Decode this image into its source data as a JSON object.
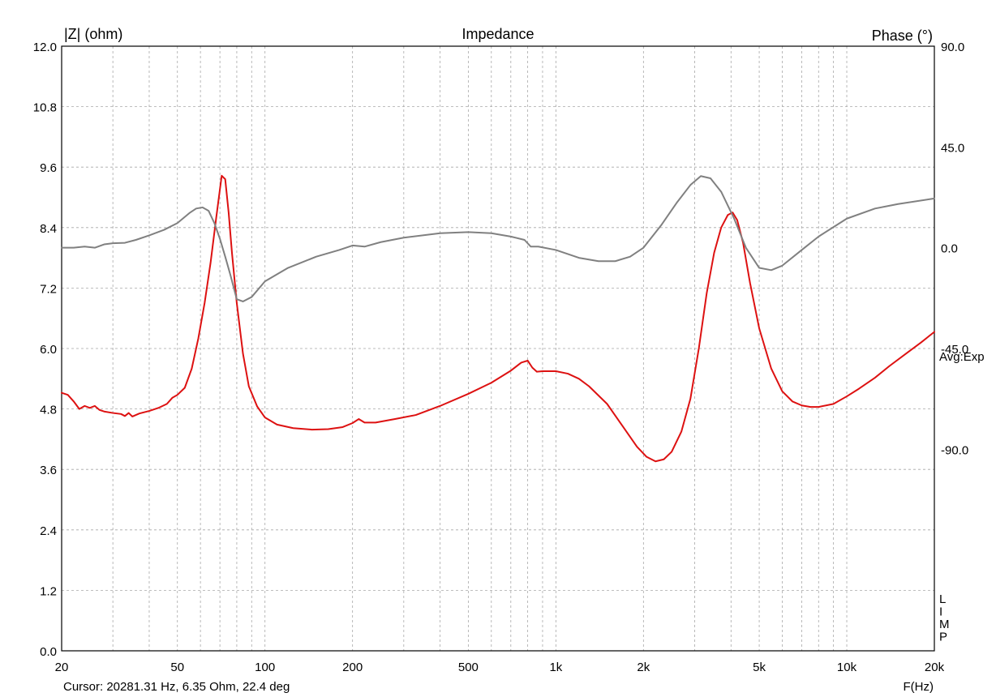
{
  "chart_data": {
    "type": "line",
    "title": "Impedance",
    "ylabel": "|Z| (ohm)",
    "y2label": "Phase (°)",
    "xlabel": "F(Hz)",
    "xscale": "log",
    "xlim": [
      20,
      20000
    ],
    "ylim": [
      0,
      12
    ],
    "y2lim": [
      -180,
      90
    ],
    "grid": true,
    "x_ticks": [
      {
        "value": 20,
        "label": "20"
      },
      {
        "value": 50,
        "label": "50"
      },
      {
        "value": 100,
        "label": "100"
      },
      {
        "value": 200,
        "label": "200"
      },
      {
        "value": 500,
        "label": "500"
      },
      {
        "value": 1000,
        "label": "1k"
      },
      {
        "value": 2000,
        "label": "2k"
      },
      {
        "value": 5000,
        "label": "5k"
      },
      {
        "value": 10000,
        "label": "10k"
      },
      {
        "value": 20000,
        "label": "20k"
      }
    ],
    "y_ticks": [
      "0.0",
      "1.2",
      "2.4",
      "3.6",
      "4.8",
      "6.0",
      "7.2",
      "8.4",
      "9.6",
      "10.8",
      "12.0"
    ],
    "y2_ticks": [
      {
        "value": 90,
        "label": "90.0"
      },
      {
        "value": 45,
        "label": "45.0"
      },
      {
        "value": 0,
        "label": "0.0"
      },
      {
        "value": -45,
        "label": "-45.0"
      },
      {
        "value": -90,
        "label": "-90.0"
      }
    ],
    "side_labels": [
      "Avg:Exp",
      "L",
      "I",
      "M",
      "P"
    ],
    "cursor_text": "Cursor: 20281.31 Hz, 6.35 Ohm, 22.4 deg",
    "series": [
      {
        "axis": "left",
        "color": "#dd1111",
        "points": [
          [
            20,
            5.12
          ],
          [
            21,
            5.08
          ],
          [
            22,
            4.95
          ],
          [
            23,
            4.8
          ],
          [
            24,
            4.86
          ],
          [
            25,
            4.82
          ],
          [
            26,
            4.86
          ],
          [
            27,
            4.78
          ],
          [
            28,
            4.75
          ],
          [
            30,
            4.72
          ],
          [
            32,
            4.7
          ],
          [
            33,
            4.66
          ],
          [
            34,
            4.72
          ],
          [
            35,
            4.65
          ],
          [
            37,
            4.71
          ],
          [
            40,
            4.76
          ],
          [
            43,
            4.82
          ],
          [
            46,
            4.9
          ],
          [
            48,
            5.02
          ],
          [
            50,
            5.08
          ],
          [
            53,
            5.22
          ],
          [
            56,
            5.6
          ],
          [
            59,
            6.2
          ],
          [
            62,
            6.9
          ],
          [
            65,
            7.7
          ],
          [
            68,
            8.6
          ],
          [
            71,
            9.43
          ],
          [
            73,
            9.36
          ],
          [
            75,
            8.7
          ],
          [
            77,
            7.9
          ],
          [
            80,
            6.9
          ],
          [
            84,
            5.9
          ],
          [
            88,
            5.25
          ],
          [
            94,
            4.85
          ],
          [
            100,
            4.63
          ],
          [
            110,
            4.49
          ],
          [
            125,
            4.42
          ],
          [
            145,
            4.39
          ],
          [
            165,
            4.4
          ],
          [
            185,
            4.44
          ],
          [
            200,
            4.52
          ],
          [
            210,
            4.6
          ],
          [
            220,
            4.53
          ],
          [
            240,
            4.53
          ],
          [
            280,
            4.6
          ],
          [
            330,
            4.68
          ],
          [
            400,
            4.86
          ],
          [
            500,
            5.1
          ],
          [
            600,
            5.32
          ],
          [
            700,
            5.56
          ],
          [
            760,
            5.72
          ],
          [
            800,
            5.76
          ],
          [
            830,
            5.62
          ],
          [
            860,
            5.54
          ],
          [
            900,
            5.55
          ],
          [
            1000,
            5.55
          ],
          [
            1100,
            5.5
          ],
          [
            1200,
            5.4
          ],
          [
            1300,
            5.25
          ],
          [
            1500,
            4.9
          ],
          [
            1700,
            4.45
          ],
          [
            1900,
            4.05
          ],
          [
            2050,
            3.85
          ],
          [
            2200,
            3.76
          ],
          [
            2350,
            3.8
          ],
          [
            2500,
            3.95
          ],
          [
            2700,
            4.35
          ],
          [
            2900,
            5.0
          ],
          [
            3100,
            6.0
          ],
          [
            3300,
            7.1
          ],
          [
            3500,
            7.9
          ],
          [
            3700,
            8.4
          ],
          [
            3900,
            8.65
          ],
          [
            4050,
            8.7
          ],
          [
            4200,
            8.55
          ],
          [
            4400,
            8.1
          ],
          [
            4650,
            7.3
          ],
          [
            5000,
            6.4
          ],
          [
            5500,
            5.6
          ],
          [
            6000,
            5.15
          ],
          [
            6500,
            4.95
          ],
          [
            7000,
            4.87
          ],
          [
            7500,
            4.84
          ],
          [
            8000,
            4.84
          ],
          [
            9000,
            4.9
          ],
          [
            10000,
            5.05
          ],
          [
            11000,
            5.2
          ],
          [
            12500,
            5.42
          ],
          [
            14000,
            5.65
          ],
          [
            16000,
            5.9
          ],
          [
            18000,
            6.12
          ],
          [
            20000,
            6.33
          ]
        ]
      },
      {
        "axis": "right",
        "color": "#808080",
        "points": [
          [
            20,
            0.0
          ],
          [
            22,
            0.0
          ],
          [
            24,
            0.5
          ],
          [
            26,
            0.0
          ],
          [
            28,
            1.5
          ],
          [
            30,
            2.0
          ],
          [
            33,
            2.2
          ],
          [
            36,
            3.5
          ],
          [
            40,
            5.5
          ],
          [
            45,
            8.0
          ],
          [
            50,
            11.0
          ],
          [
            55,
            15.5
          ],
          [
            58,
            17.5
          ],
          [
            61,
            18.0
          ],
          [
            64,
            16.5
          ],
          [
            67,
            11.0
          ],
          [
            70,
            4.0
          ],
          [
            73,
            -4.0
          ],
          [
            76,
            -12.0
          ],
          [
            80,
            -23.0
          ],
          [
            84,
            -24.0
          ],
          [
            90,
            -22.0
          ],
          [
            100,
            -15.0
          ],
          [
            120,
            -9.0
          ],
          [
            150,
            -4.0
          ],
          [
            180,
            -1.0
          ],
          [
            200,
            1.0
          ],
          [
            220,
            0.5
          ],
          [
            250,
            2.5
          ],
          [
            300,
            4.5
          ],
          [
            400,
            6.5
          ],
          [
            500,
            7.0
          ],
          [
            600,
            6.5
          ],
          [
            700,
            5.0
          ],
          [
            780,
            3.5
          ],
          [
            820,
            0.5
          ],
          [
            870,
            0.5
          ],
          [
            1000,
            -1.0
          ],
          [
            1200,
            -4.5
          ],
          [
            1400,
            -6.0
          ],
          [
            1600,
            -6.0
          ],
          [
            1800,
            -4.0
          ],
          [
            2000,
            0.0
          ],
          [
            2300,
            10.0
          ],
          [
            2600,
            20.0
          ],
          [
            2900,
            28.0
          ],
          [
            3150,
            32.0
          ],
          [
            3400,
            31.0
          ],
          [
            3700,
            25.0
          ],
          [
            4100,
            13.0
          ],
          [
            4500,
            0.0
          ],
          [
            5000,
            -9.0
          ],
          [
            5500,
            -10.0
          ],
          [
            6000,
            -8.0
          ],
          [
            7000,
            -1.0
          ],
          [
            8000,
            5.0
          ],
          [
            10000,
            13.0
          ],
          [
            12500,
            17.5
          ],
          [
            15000,
            19.5
          ],
          [
            20000,
            22.0
          ]
        ]
      }
    ]
  }
}
